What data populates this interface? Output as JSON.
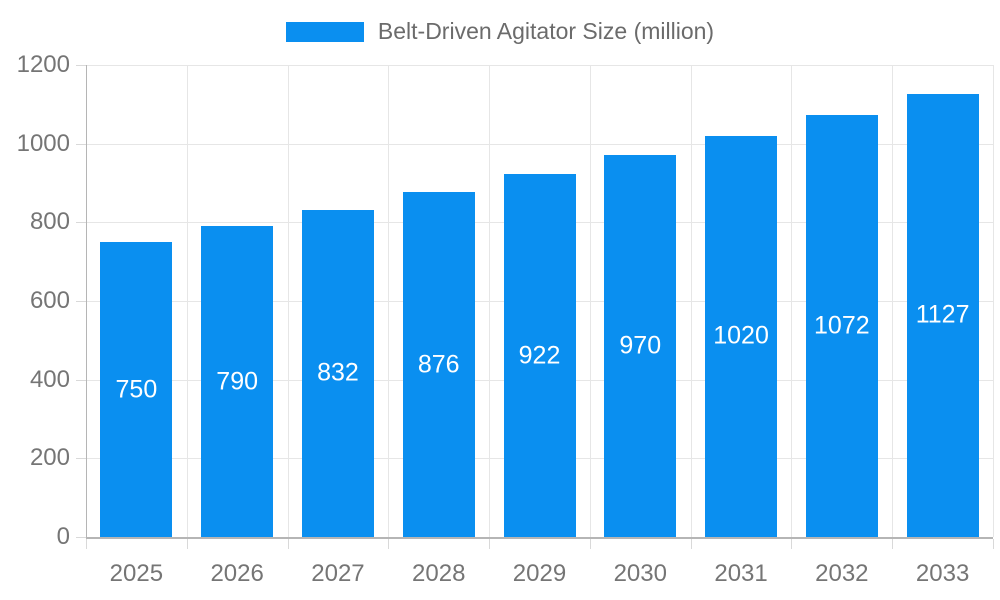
{
  "chart_data": {
    "type": "bar",
    "legend": "Belt-Driven Agitator Size (million)",
    "categories": [
      "2025",
      "2026",
      "2027",
      "2028",
      "2029",
      "2030",
      "2031",
      "2032",
      "2033"
    ],
    "values": [
      750,
      790,
      832,
      876,
      922,
      970,
      1020,
      1072,
      1127
    ],
    "ylim": [
      0,
      1200
    ],
    "yticks": [
      0,
      200,
      400,
      600,
      800,
      1000,
      1200
    ],
    "grid": true,
    "legend_position": "top-center",
    "value_labels": "inside-center",
    "colors": {
      "bar": "#0a8ff0",
      "value_label": "#ffffff",
      "axis_text": "#757575",
      "legend_text": "#6b6b6b",
      "gridline": "#e6e6e6",
      "axis_line": "#b5b5b5"
    }
  }
}
